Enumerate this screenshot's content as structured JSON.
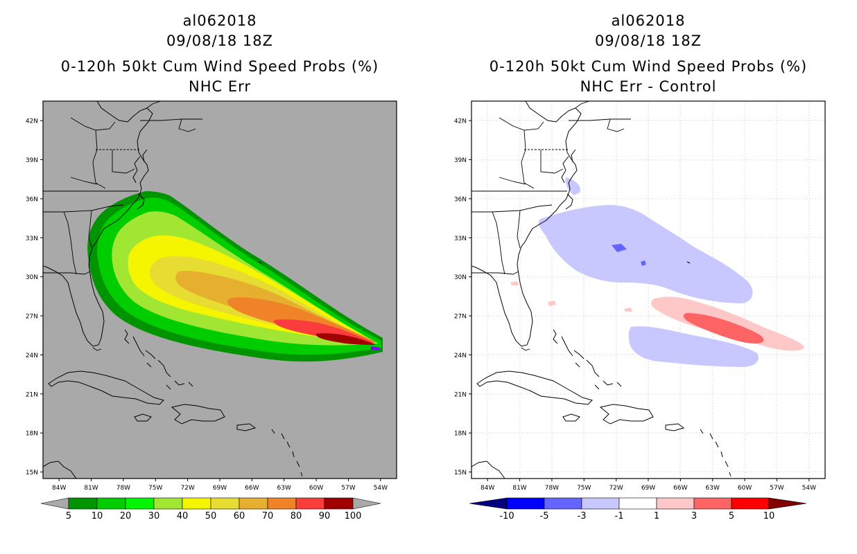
{
  "left_panel": {
    "storm_id": "al062018",
    "datetime": "09/08/18 18Z",
    "product": "0-120h 50kt Cum Wind Speed Probs (%)",
    "subtitle": "NHC Err",
    "colorbar": {
      "ticks": [
        "5",
        "10",
        "20",
        "30",
        "40",
        "50",
        "60",
        "70",
        "80",
        "90",
        "100"
      ],
      "colors": [
        "#009400",
        "#00cd00",
        "#00f500",
        "#a0e632",
        "#f5f500",
        "#e6dc32",
        "#e6af2d",
        "#f08228",
        "#fa3c3c",
        "#a00000",
        "#8000ff"
      ],
      "background": "#a9a9a9"
    }
  },
  "right_panel": {
    "storm_id": "al062018",
    "datetime": "09/08/18 18Z",
    "product": "0-120h 50kt Cum Wind Speed Probs (%)",
    "subtitle": "NHC Err - Control",
    "colorbar": {
      "ticks": [
        "-10",
        "-5",
        "-3",
        "-1",
        "1",
        "3",
        "5",
        "10"
      ],
      "colors": [
        "#00007f",
        "#0000ff",
        "#6464ff",
        "#c8c8ff",
        "#ffffff",
        "#ffc8c8",
        "#ff6464",
        "#ff0000",
        "#7f0000"
      ]
    }
  },
  "map_axes": {
    "lat_labels": [
      "42N",
      "39N",
      "36N",
      "33N",
      "30N",
      "27N",
      "24N",
      "21N",
      "18N",
      "15N"
    ],
    "lon_labels": [
      "84W",
      "81W",
      "78W",
      "75W",
      "72W",
      "69W",
      "66W",
      "63W",
      "60W",
      "57W",
      "54W"
    ],
    "lon_range": [
      -85.5,
      -52.5
    ],
    "lat_range": [
      14.5,
      43.5
    ]
  }
}
